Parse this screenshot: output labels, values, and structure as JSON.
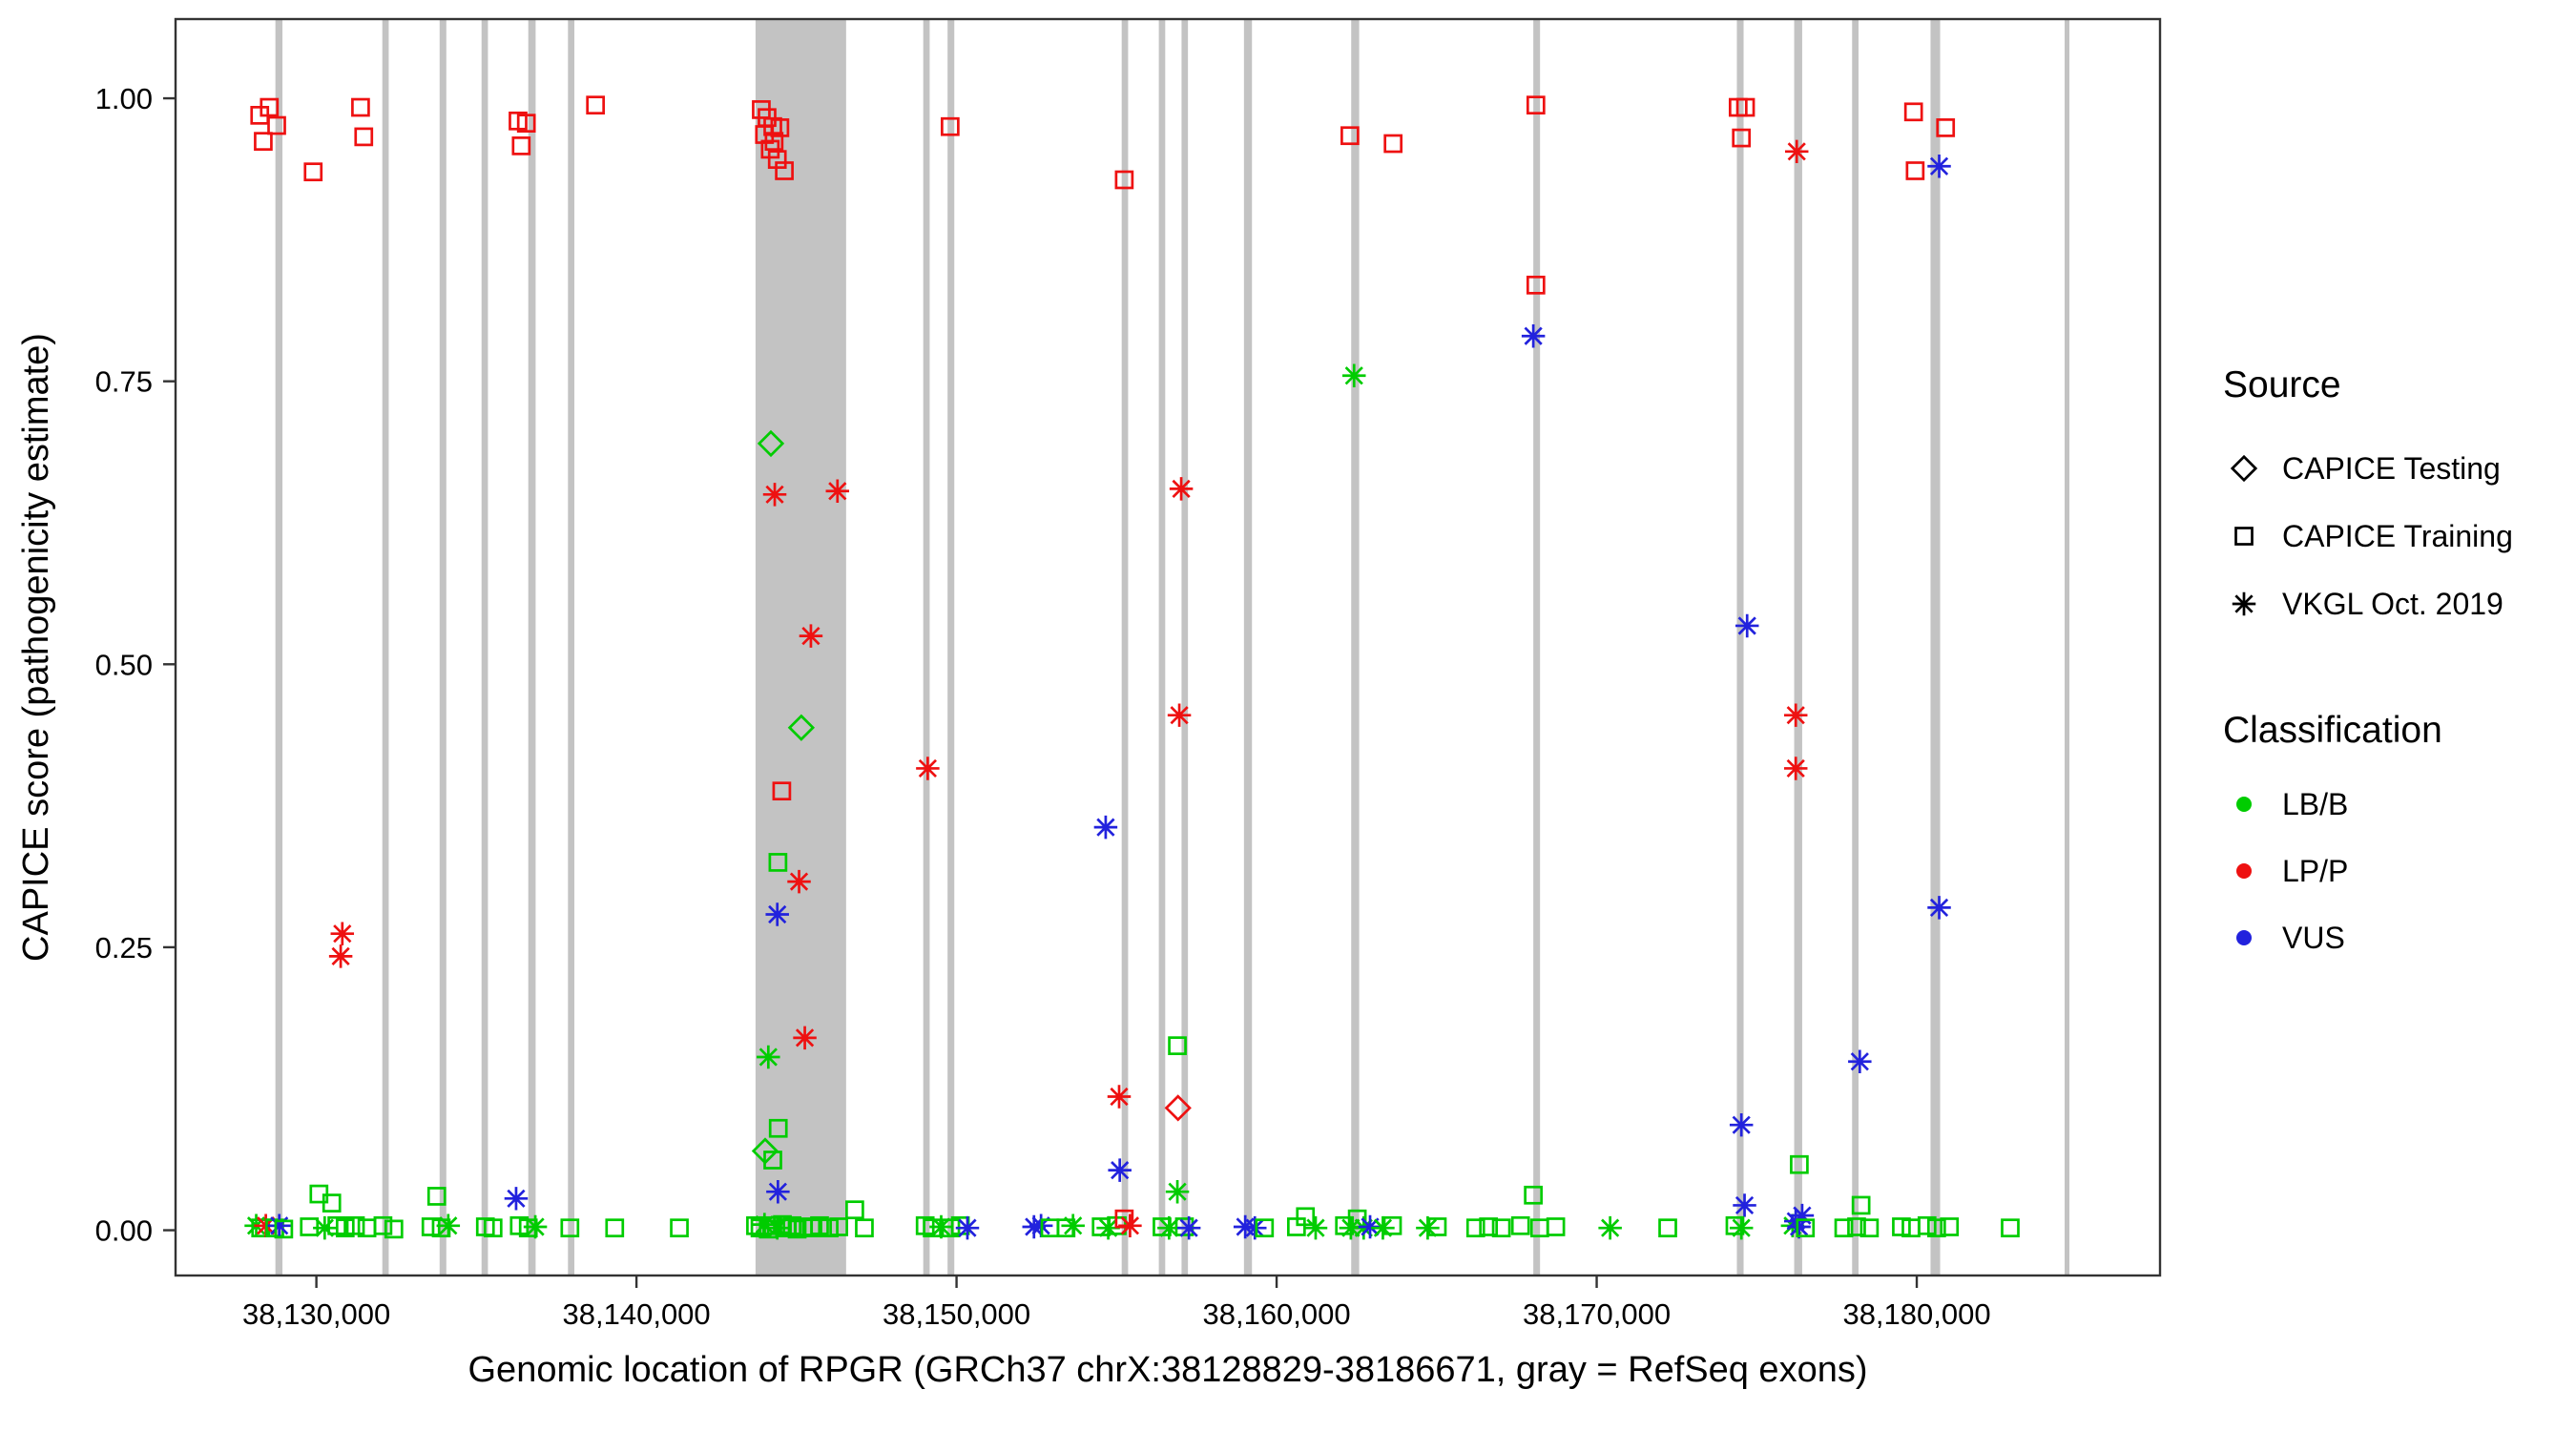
{
  "figure": {
    "background": "#ffffff",
    "panel_border_color": "#333333",
    "axis_text_color": "#4d4d4d",
    "exon_color": "#c3c3c3"
  },
  "chart_data": {
    "type": "scatter",
    "title": "",
    "xlabel": "Genomic location of RPGR (GRCh37 chrX:38128829-38186671, gray = RefSeq exons)",
    "ylabel": "CAPICE score (pathogenicity estimate)",
    "xlim": [
      38125600,
      38187600
    ],
    "ylim": [
      -0.04,
      1.07
    ],
    "grid": false,
    "xticks": [
      38130000,
      38140000,
      38150000,
      38160000,
      38170000,
      38180000
    ],
    "xtick_labels": [
      "38,130,000",
      "38,140,000",
      "38,150,000",
      "38,160,000",
      "38,170,000",
      "38,180,000"
    ],
    "yticks": [
      0,
      0.25,
      0.5,
      0.75,
      1.0
    ],
    "ytick_labels": [
      "0.00",
      "0.25",
      "0.50",
      "0.75",
      "1.00"
    ],
    "classification_colors": {
      "LB/B": "#00cc00",
      "LP/P": "#ee1111",
      "VUS": "#2222dd"
    },
    "source_markers": {
      "CAPICE Testing": "diamond",
      "CAPICE Training": "square",
      "VKGL Oct. 2019": "asterisk"
    },
    "legend": {
      "source": {
        "title": "Source",
        "items": [
          {
            "label": "CAPICE Testing",
            "marker": "diamond"
          },
          {
            "label": "CAPICE Training",
            "marker": "square"
          },
          {
            "label": "VKGL Oct. 2019",
            "marker": "asterisk"
          }
        ]
      },
      "classification": {
        "title": "Classification",
        "items": [
          {
            "label": "LB/B",
            "color": "#00cc00"
          },
          {
            "label": "LP/P",
            "color": "#ee1111"
          },
          {
            "label": "VUS",
            "color": "#2222dd"
          }
        ]
      }
    },
    "exons": [
      [
        38128720,
        38128940
      ],
      [
        38132060,
        38132260
      ],
      [
        38133850,
        38134060
      ],
      [
        38135160,
        38135360
      ],
      [
        38136620,
        38136850
      ],
      [
        38137860,
        38138060
      ],
      [
        38143720,
        38146550
      ],
      [
        38148960,
        38149160
      ],
      [
        38149720,
        38149930
      ],
      [
        38155160,
        38155360
      ],
      [
        38156320,
        38156520
      ],
      [
        38157030,
        38157230
      ],
      [
        38158980,
        38159230
      ],
      [
        38162330,
        38162580
      ],
      [
        38168020,
        38168230
      ],
      [
        38174380,
        38174590
      ],
      [
        38176170,
        38176420
      ],
      [
        38177980,
        38178180
      ],
      [
        38180430,
        38180730
      ],
      [
        38184620,
        38184760
      ]
    ],
    "points": [
      [
        38128230,
        0.985,
        "square",
        "LP/P"
      ],
      [
        38128340,
        0.962,
        "square",
        "LP/P"
      ],
      [
        38128760,
        0.976,
        "square",
        "LP/P"
      ],
      [
        38128530,
        0.992,
        "square",
        "LP/P"
      ],
      [
        38129900,
        0.935,
        "square",
        "LP/P"
      ],
      [
        38131380,
        0.992,
        "square",
        "LP/P"
      ],
      [
        38131480,
        0.966,
        "square",
        "LP/P"
      ],
      [
        38136300,
        0.98,
        "square",
        "LP/P"
      ],
      [
        38136560,
        0.978,
        "square",
        "LP/P"
      ],
      [
        38136400,
        0.958,
        "square",
        "LP/P"
      ],
      [
        38138720,
        0.994,
        "square",
        "LP/P"
      ],
      [
        38143900,
        0.99,
        "square",
        "LP/P"
      ],
      [
        38144080,
        0.983,
        "square",
        "LP/P"
      ],
      [
        38144000,
        0.968,
        "square",
        "LP/P"
      ],
      [
        38144260,
        0.975,
        "square",
        "LP/P"
      ],
      [
        38144180,
        0.955,
        "square",
        "LP/P"
      ],
      [
        38144480,
        0.974,
        "square",
        "LP/P"
      ],
      [
        38144400,
        0.946,
        "square",
        "LP/P"
      ],
      [
        38144620,
        0.936,
        "square",
        "LP/P"
      ],
      [
        38144300,
        0.962,
        "square",
        "LP/P"
      ],
      [
        38149800,
        0.975,
        "square",
        "LP/P"
      ],
      [
        38155240,
        0.928,
        "square",
        "LP/P"
      ],
      [
        38162290,
        0.967,
        "square",
        "LP/P"
      ],
      [
        38163640,
        0.96,
        "square",
        "LP/P"
      ],
      [
        38168100,
        0.994,
        "square",
        "LP/P"
      ],
      [
        38174420,
        0.992,
        "square",
        "LP/P"
      ],
      [
        38174650,
        0.992,
        "square",
        "LP/P"
      ],
      [
        38174520,
        0.965,
        "square",
        "LP/P"
      ],
      [
        38176250,
        0.953,
        "asterisk",
        "LP/P"
      ],
      [
        38179900,
        0.988,
        "square",
        "LP/P"
      ],
      [
        38179950,
        0.936,
        "square",
        "LP/P"
      ],
      [
        38180700,
        0.94,
        "asterisk",
        "VUS"
      ],
      [
        38180900,
        0.974,
        "square",
        "LP/P"
      ],
      [
        38168100,
        0.835,
        "square",
        "LP/P"
      ],
      [
        38168020,
        0.79,
        "asterisk",
        "VUS"
      ],
      [
        38162420,
        0.755,
        "asterisk",
        "LB/B"
      ],
      [
        38144200,
        0.695,
        "diamond",
        "LB/B"
      ],
      [
        38144320,
        0.65,
        "asterisk",
        "LP/P"
      ],
      [
        38146280,
        0.653,
        "asterisk",
        "LP/P"
      ],
      [
        38145450,
        0.525,
        "asterisk",
        "LP/P"
      ],
      [
        38145150,
        0.444,
        "diamond",
        "LB/B"
      ],
      [
        38144540,
        0.388,
        "square",
        "LP/P"
      ],
      [
        38149100,
        0.408,
        "asterisk",
        "LP/P"
      ],
      [
        38157020,
        0.655,
        "asterisk",
        "LP/P"
      ],
      [
        38156960,
        0.455,
        "asterisk",
        "LP/P"
      ],
      [
        38154660,
        0.356,
        "asterisk",
        "VUS"
      ],
      [
        38144420,
        0.325,
        "square",
        "LB/B"
      ],
      [
        38145080,
        0.308,
        "asterisk",
        "LP/P"
      ],
      [
        38144400,
        0.279,
        "asterisk",
        "VUS"
      ],
      [
        38174700,
        0.534,
        "asterisk",
        "VUS"
      ],
      [
        38176220,
        0.455,
        "asterisk",
        "LP/P"
      ],
      [
        38176220,
        0.408,
        "asterisk",
        "LP/P"
      ],
      [
        38180700,
        0.285,
        "asterisk",
        "VUS"
      ],
      [
        38130810,
        0.262,
        "asterisk",
        "LP/P"
      ],
      [
        38130760,
        0.242,
        "asterisk",
        "LP/P"
      ],
      [
        38145260,
        0.17,
        "asterisk",
        "LP/P"
      ],
      [
        38144120,
        0.153,
        "asterisk",
        "LB/B"
      ],
      [
        38178220,
        0.149,
        "asterisk",
        "VUS"
      ],
      [
        38155080,
        0.118,
        "asterisk",
        "LP/P"
      ],
      [
        38156900,
        0.163,
        "square",
        "LB/B"
      ],
      [
        38156920,
        0.108,
        "diamond",
        "LP/P"
      ],
      [
        38144430,
        0.09,
        "square",
        "LB/B"
      ],
      [
        38174520,
        0.093,
        "asterisk",
        "VUS"
      ],
      [
        38144020,
        0.07,
        "diamond",
        "LB/B"
      ],
      [
        38144260,
        0.062,
        "square",
        "LB/B"
      ],
      [
        38155100,
        0.053,
        "asterisk",
        "VUS"
      ],
      [
        38176330,
        0.058,
        "square",
        "LB/B"
      ],
      [
        38136240,
        0.028,
        "asterisk",
        "VUS"
      ],
      [
        38144420,
        0.034,
        "asterisk",
        "VUS"
      ],
      [
        38174620,
        0.022,
        "asterisk",
        "VUS"
      ],
      [
        38130080,
        0.032,
        "square",
        "LB/B"
      ],
      [
        38130480,
        0.024,
        "square",
        "LB/B"
      ],
      [
        38133760,
        0.03,
        "square",
        "LB/B"
      ],
      [
        38156900,
        0.034,
        "asterisk",
        "LB/B"
      ],
      [
        38168020,
        0.031,
        "square",
        "LB/B"
      ],
      [
        38178260,
        0.022,
        "square",
        "LB/B"
      ],
      [
        38146820,
        0.018,
        "square",
        "LB/B"
      ],
      [
        38160900,
        0.012,
        "square",
        "LB/B"
      ],
      [
        38162520,
        0.01,
        "square",
        "LB/B"
      ],
      [
        38128120,
        0.004,
        "asterisk",
        "LB/B"
      ],
      [
        38128260,
        0.002,
        "square",
        "LB/B"
      ],
      [
        38128420,
        0.004,
        "asterisk",
        "LP/P"
      ],
      [
        38128700,
        0.002,
        "square",
        "LB/B"
      ],
      [
        38128840,
        0.004,
        "asterisk",
        "VUS"
      ],
      [
        38128980,
        0.001,
        "square",
        "LB/B"
      ],
      [
        38129780,
        0.003,
        "square",
        "LB/B"
      ],
      [
        38130260,
        0.002,
        "asterisk",
        "LB/B"
      ],
      [
        38130640,
        0.004,
        "square",
        "LB/B"
      ],
      [
        38130900,
        0.002,
        "square",
        "LB/B"
      ],
      [
        38131220,
        0.004,
        "square",
        "LB/B"
      ],
      [
        38131580,
        0.002,
        "square",
        "LB/B"
      ],
      [
        38132080,
        0.004,
        "square",
        "LB/B"
      ],
      [
        38132420,
        0.001,
        "square",
        "LB/B"
      ],
      [
        38133580,
        0.003,
        "square",
        "LB/B"
      ],
      [
        38133900,
        0.002,
        "square",
        "LB/B"
      ],
      [
        38134120,
        0.004,
        "asterisk",
        "LB/B"
      ],
      [
        38135280,
        0.003,
        "square",
        "LB/B"
      ],
      [
        38135520,
        0.002,
        "square",
        "LB/B"
      ],
      [
        38136340,
        0.004,
        "square",
        "LB/B"
      ],
      [
        38136620,
        0.002,
        "square",
        "LB/B"
      ],
      [
        38136840,
        0.003,
        "asterisk",
        "LB/B"
      ],
      [
        38137920,
        0.002,
        "square",
        "LB/B"
      ],
      [
        38139320,
        0.002,
        "square",
        "LB/B"
      ],
      [
        38141340,
        0.002,
        "square",
        "LB/B"
      ],
      [
        38143720,
        0.004,
        "square",
        "LB/B"
      ],
      [
        38143860,
        0.002,
        "square",
        "LB/B"
      ],
      [
        38144000,
        0.005,
        "asterisk",
        "LB/B"
      ],
      [
        38144120,
        0.001,
        "square",
        "LB/B"
      ],
      [
        38144260,
        0.004,
        "square",
        "LB/B"
      ],
      [
        38144400,
        0.002,
        "asterisk",
        "LB/B"
      ],
      [
        38144560,
        0.005,
        "square",
        "LB/B"
      ],
      [
        38144700,
        0.002,
        "square",
        "LB/B"
      ],
      [
        38144860,
        0.004,
        "square",
        "LB/B"
      ],
      [
        38145020,
        0.001,
        "square",
        "LB/B"
      ],
      [
        38145220,
        0.003,
        "square",
        "LB/B"
      ],
      [
        38145460,
        0.002,
        "square",
        "LB/B"
      ],
      [
        38145720,
        0.004,
        "square",
        "LB/B"
      ],
      [
        38146020,
        0.002,
        "square",
        "LB/B"
      ],
      [
        38146320,
        0.003,
        "square",
        "LB/B"
      ],
      [
        38147120,
        0.002,
        "square",
        "LB/B"
      ],
      [
        38149020,
        0.004,
        "square",
        "LB/B"
      ],
      [
        38149240,
        0.002,
        "square",
        "LB/B"
      ],
      [
        38149520,
        0.003,
        "asterisk",
        "LB/B"
      ],
      [
        38149820,
        0.002,
        "square",
        "LB/B"
      ],
      [
        38150120,
        0.004,
        "square",
        "LB/B"
      ],
      [
        38150340,
        0.002,
        "asterisk",
        "VUS"
      ],
      [
        38152420,
        0.003,
        "asterisk",
        "VUS"
      ],
      [
        38152640,
        0.004,
        "asterisk",
        "VUS"
      ],
      [
        38152920,
        0.002,
        "square",
        "LB/B"
      ],
      [
        38153420,
        0.002,
        "square",
        "LB/B"
      ],
      [
        38153640,
        0.004,
        "asterisk",
        "LB/B"
      ],
      [
        38154520,
        0.003,
        "square",
        "LB/B"
      ],
      [
        38154740,
        0.002,
        "asterisk",
        "LB/B"
      ],
      [
        38155020,
        0.004,
        "square",
        "LB/B"
      ],
      [
        38155240,
        0.01,
        "square",
        "LP/P"
      ],
      [
        38155420,
        0.004,
        "asterisk",
        "LP/P"
      ],
      [
        38156420,
        0.003,
        "square",
        "LB/B"
      ],
      [
        38156640,
        0.002,
        "asterisk",
        "LB/B"
      ],
      [
        38157120,
        0.003,
        "square",
        "LB/B"
      ],
      [
        38157260,
        0.002,
        "asterisk",
        "VUS"
      ],
      [
        38159020,
        0.003,
        "asterisk",
        "VUS"
      ],
      [
        38159320,
        0.002,
        "asterisk",
        "VUS"
      ],
      [
        38159620,
        0.002,
        "square",
        "LB/B"
      ],
      [
        38160620,
        0.003,
        "square",
        "LB/B"
      ],
      [
        38161220,
        0.002,
        "asterisk",
        "LB/B"
      ],
      [
        38162120,
        0.004,
        "square",
        "LB/B"
      ],
      [
        38162320,
        0.002,
        "asterisk",
        "LB/B"
      ],
      [
        38162720,
        0.002,
        "asterisk",
        "LB/B"
      ],
      [
        38162920,
        0.003,
        "asterisk",
        "VUS"
      ],
      [
        38163320,
        0.002,
        "asterisk",
        "LB/B"
      ],
      [
        38163620,
        0.004,
        "square",
        "LB/B"
      ],
      [
        38164720,
        0.002,
        "asterisk",
        "LB/B"
      ],
      [
        38165020,
        0.003,
        "square",
        "LB/B"
      ],
      [
        38166220,
        0.002,
        "square",
        "LB/B"
      ],
      [
        38166620,
        0.003,
        "square",
        "LB/B"
      ],
      [
        38167020,
        0.002,
        "square",
        "LB/B"
      ],
      [
        38167620,
        0.004,
        "square",
        "LB/B"
      ],
      [
        38168220,
        0.002,
        "square",
        "LB/B"
      ],
      [
        38168720,
        0.003,
        "square",
        "LB/B"
      ],
      [
        38170420,
        0.002,
        "asterisk",
        "LB/B"
      ],
      [
        38172220,
        0.002,
        "square",
        "LB/B"
      ],
      [
        38174320,
        0.004,
        "square",
        "LB/B"
      ],
      [
        38174520,
        0.002,
        "asterisk",
        "LB/B"
      ],
      [
        38176120,
        0.004,
        "asterisk",
        "LB/B"
      ],
      [
        38176220,
        0.008,
        "asterisk",
        "VUS"
      ],
      [
        38176320,
        0.003,
        "asterisk",
        "VUS"
      ],
      [
        38176420,
        0.013,
        "asterisk",
        "VUS"
      ],
      [
        38176520,
        0.002,
        "square",
        "LB/B"
      ],
      [
        38177720,
        0.002,
        "square",
        "LB/B"
      ],
      [
        38178120,
        0.003,
        "square",
        "LB/B"
      ],
      [
        38178520,
        0.002,
        "square",
        "LB/B"
      ],
      [
        38179520,
        0.003,
        "square",
        "LB/B"
      ],
      [
        38179820,
        0.002,
        "square",
        "LB/B"
      ],
      [
        38180320,
        0.004,
        "square",
        "LB/B"
      ],
      [
        38180620,
        0.002,
        "square",
        "LB/B"
      ],
      [
        38181020,
        0.003,
        "square",
        "LB/B"
      ],
      [
        38182920,
        0.002,
        "square",
        "LB/B"
      ]
    ]
  }
}
